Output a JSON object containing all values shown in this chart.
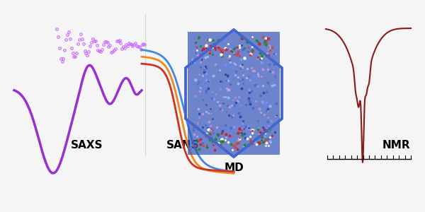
{
  "background_color": "#f5f5f5",
  "saxs_color": "#9b30d0",
  "saxs_scatter_color": "#cc66ff",
  "sans_colors": [
    "#4488dd",
    "#ee8822",
    "#cc3322"
  ],
  "nmr_color": "#8b1a1a",
  "md_hex_color": "#4466cc",
  "labels": {
    "saxs": "SAXS",
    "sans": "SANS",
    "md": "MD",
    "nmr": "NMR"
  },
  "label_fontsize": 11,
  "label_fontweight": "bold",
  "figsize": [
    6.0,
    3.0
  ],
  "dpi": 100
}
